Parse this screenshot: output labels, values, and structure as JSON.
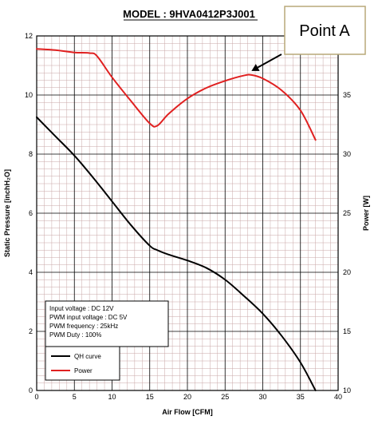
{
  "chart_data": {
    "type": "line",
    "title": "MODEL : 9HVA0412P3J001",
    "xlabel": "Air Flow [CFM]",
    "ylabel": "Static Pressure [inchH₂O]",
    "y2label": "Power [W]",
    "xlim": [
      0,
      40
    ],
    "ylim": [
      0,
      12
    ],
    "y2lim": [
      10,
      40
    ],
    "x_ticks": [
      "0",
      "5",
      "10",
      "15",
      "20",
      "25",
      "30",
      "35",
      "40"
    ],
    "y_ticks": [
      "0",
      "2",
      "4",
      "6",
      "8",
      "10",
      "12"
    ],
    "y2_ticks": [
      "10",
      "15",
      "20",
      "25",
      "30",
      "35"
    ],
    "grid": true,
    "series": [
      {
        "name": "QH curve",
        "color": "#000000",
        "axis": "left",
        "x": [
          0,
          2.5,
          5,
          7.5,
          10,
          12.5,
          15,
          16,
          17.5,
          20,
          22.5,
          25,
          27.5,
          30,
          32.5,
          35,
          37
        ],
        "y": [
          9.25,
          8.6,
          7.95,
          7.2,
          6.4,
          5.6,
          4.9,
          4.75,
          4.6,
          4.4,
          4.15,
          3.75,
          3.2,
          2.6,
          1.85,
          0.95,
          0.0
        ]
      },
      {
        "name": "Power",
        "color": "#e02020",
        "axis": "right",
        "x": [
          0,
          2.5,
          5,
          7,
          8,
          10,
          12.5,
          15,
          16,
          17.5,
          20,
          22.5,
          25,
          27.5,
          28.5,
          30,
          32.5,
          35,
          37
        ],
        "y": [
          38.9,
          38.8,
          38.6,
          38.55,
          38.3,
          36.5,
          34.5,
          32.6,
          32.4,
          33.4,
          34.7,
          35.6,
          36.2,
          36.65,
          36.7,
          36.4,
          35.4,
          33.7,
          31.2
        ]
      }
    ],
    "info_box": [
      "Input voltage : DC 12V",
      "PWM input voltage : DC 5V",
      "PWM frequency : 25kHz",
      "PWM Duty : 100%"
    ],
    "legend": [
      "QH curve",
      "Power"
    ],
    "annotation": {
      "label": "Point A",
      "target_x": 28.5,
      "target_y2": 36.7
    }
  }
}
